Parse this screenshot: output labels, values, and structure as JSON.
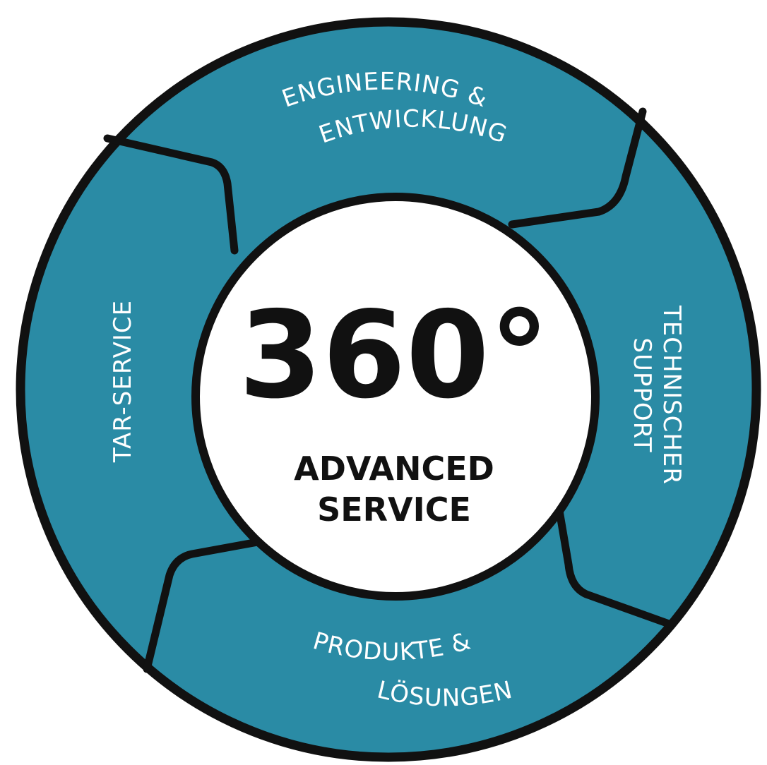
{
  "colors": {
    "ring_fill": "#2a8ba5",
    "outline": "#111111",
    "center_fill": "#ffffff",
    "label_text": "#ffffff",
    "center_text": "#111111"
  },
  "center": {
    "big": "360°",
    "line1": "ADVANCED",
    "line2": "SERVICE"
  },
  "segments": {
    "top": {
      "line1": "ENGINEERING &",
      "line2": "ENTWICKLUNG"
    },
    "right": {
      "line1": "TECHNISCHER",
      "line2": "SUPPORT"
    },
    "bottom": {
      "line1": "PRODUKTE &",
      "line2": "LÖSUNGEN"
    },
    "left": {
      "line1": "TAR-SERVICE"
    }
  }
}
